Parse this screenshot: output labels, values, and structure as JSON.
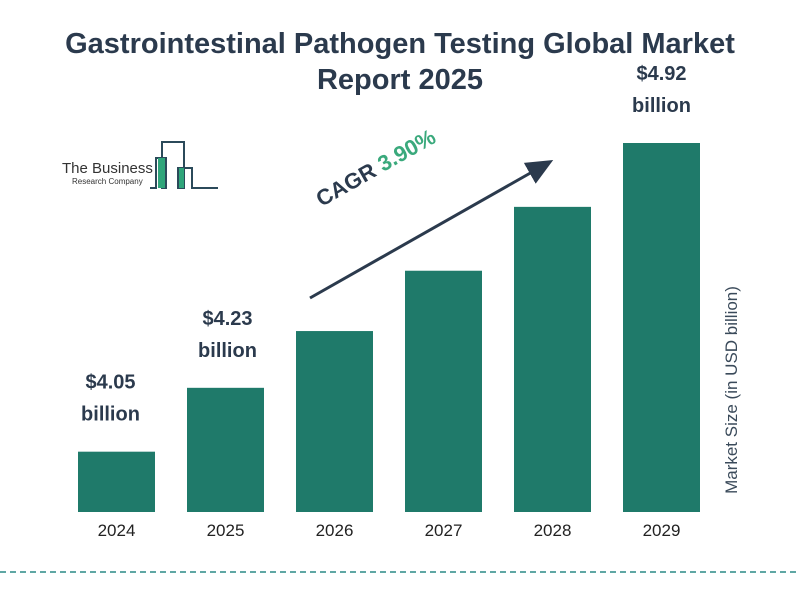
{
  "chart_data": {
    "type": "bar",
    "title": "Gastrointestinal Pathogen Testing Global Market Report 2025",
    "categories": [
      "2024",
      "2025",
      "2026",
      "2027",
      "2028",
      "2029"
    ],
    "values": [
      4.05,
      4.23,
      4.39,
      4.56,
      4.74,
      4.92
    ],
    "data_labels": {
      "0": [
        "$4.05",
        "billion"
      ],
      "1": [
        "$4.23",
        "billion"
      ],
      "5": [
        "$4.92",
        "billion"
      ]
    },
    "ylabel": "Market Size (in USD billion)",
    "xlabel": "",
    "ylim": [
      3.88,
      4.92
    ],
    "grid": false,
    "bar_color": "#1f7a6a",
    "annotation": {
      "label": "CAGR",
      "value": "3.90%",
      "value_color": "#3aa97c"
    }
  },
  "logo": {
    "line1": "The Business",
    "line2": "Research Company"
  }
}
